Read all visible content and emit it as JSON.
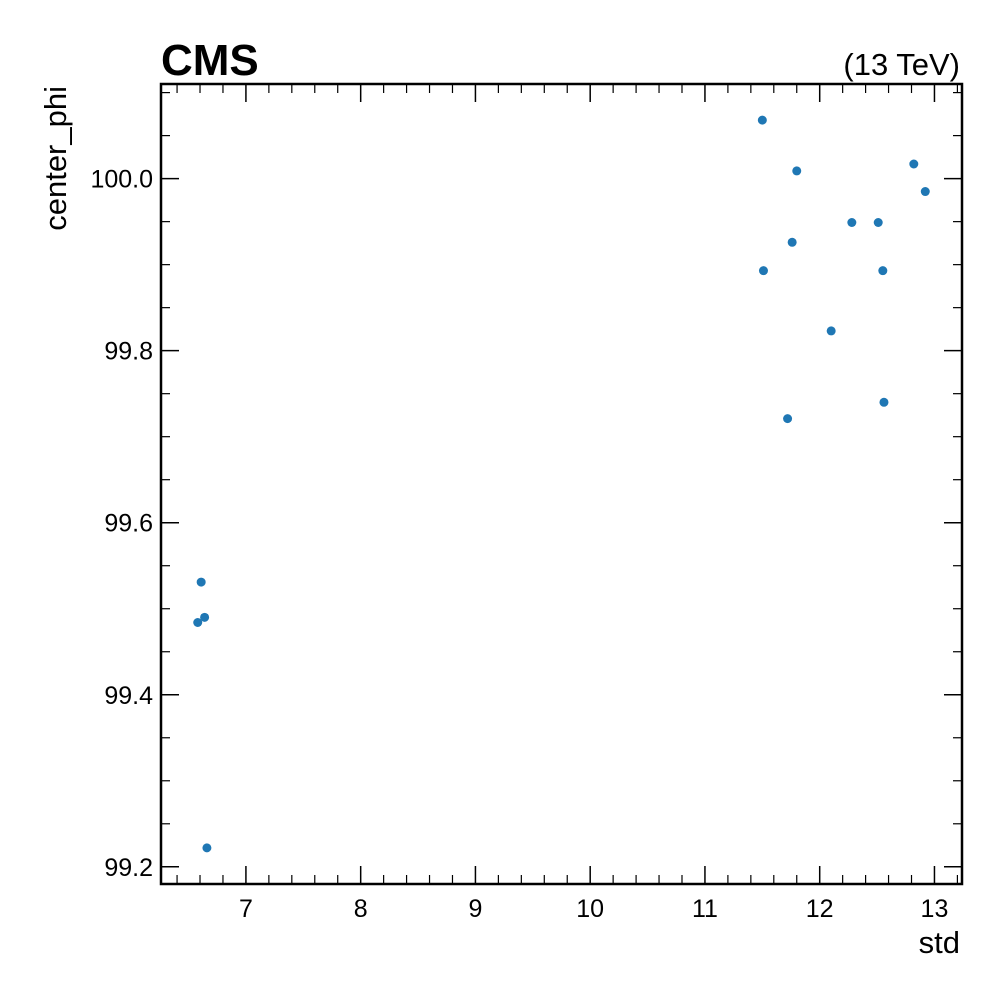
{
  "header": {
    "experiment": "CMS",
    "energy": "(13 TeV)"
  },
  "chart_data": {
    "type": "scatter",
    "xlabel": "std",
    "ylabel": "center_phi",
    "xlim": [
      6.26,
      13.24
    ],
    "ylim": [
      99.18,
      100.11
    ],
    "x_ticks": [
      7,
      8,
      9,
      10,
      11,
      12,
      13
    ],
    "x_tick_labels": [
      "7",
      "8",
      "9",
      "10",
      "11",
      "12",
      "13"
    ],
    "y_ticks": [
      99.2,
      99.4,
      99.6,
      99.8,
      100.0
    ],
    "y_tick_labels": [
      "99.2",
      "99.4",
      "99.6",
      "99.8",
      "100.0"
    ],
    "grid": false,
    "marker_color": "#1f77b4",
    "series": [
      {
        "points": [
          {
            "x": 6.58,
            "y": 99.484
          },
          {
            "x": 6.61,
            "y": 99.531
          },
          {
            "x": 6.64,
            "y": 99.49
          },
          {
            "x": 6.66,
            "y": 99.222
          },
          {
            "x": 11.5,
            "y": 100.068
          },
          {
            "x": 11.51,
            "y": 99.893
          },
          {
            "x": 11.72,
            "y": 99.721
          },
          {
            "x": 11.76,
            "y": 99.926
          },
          {
            "x": 11.8,
            "y": 100.009
          },
          {
            "x": 12.1,
            "y": 99.823
          },
          {
            "x": 12.28,
            "y": 99.949
          },
          {
            "x": 12.51,
            "y": 99.949
          },
          {
            "x": 12.55,
            "y": 99.893
          },
          {
            "x": 12.56,
            "y": 99.74
          },
          {
            "x": 12.82,
            "y": 100.017
          },
          {
            "x": 12.92,
            "y": 99.985
          }
        ]
      }
    ]
  }
}
